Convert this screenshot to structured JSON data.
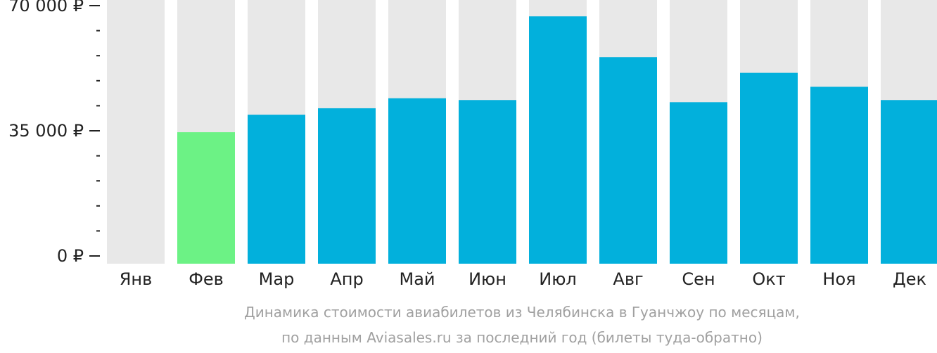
{
  "chart_data": {
    "type": "bar",
    "categories": [
      "Янв",
      "Фев",
      "Мар",
      "Апр",
      "Май",
      "Июн",
      "Июл",
      "Авг",
      "Сен",
      "Окт",
      "Ноя",
      "Дек"
    ],
    "values": [
      null,
      34600,
      39500,
      41300,
      44100,
      43600,
      67000,
      55600,
      43000,
      51200,
      47300,
      43600
    ],
    "highlight_index": 1,
    "ylim": [
      0,
      70000
    ],
    "yticks": [
      {
        "value": 0,
        "label": "0 ₽"
      },
      {
        "value": 35000,
        "label": "35 000 ₽"
      },
      {
        "value": 70000,
        "label": "70 000 ₽"
      }
    ],
    "minor_tick_step": 7000,
    "title": "Динамика стоимости авиабилетов из Челябинска в Гуанчжоу по месяцам,",
    "subtitle": "по данным Aviasales.ru за последний год (билеты туда-обратно)",
    "xlabel": "",
    "ylabel": "",
    "grid": false,
    "colors": {
      "bar": "#02b0dc",
      "highlight": "#6cf285",
      "track": "#e8e8e8",
      "axis_text": "#222222",
      "tick": "#222222",
      "caption": "#a0a0a0"
    }
  }
}
